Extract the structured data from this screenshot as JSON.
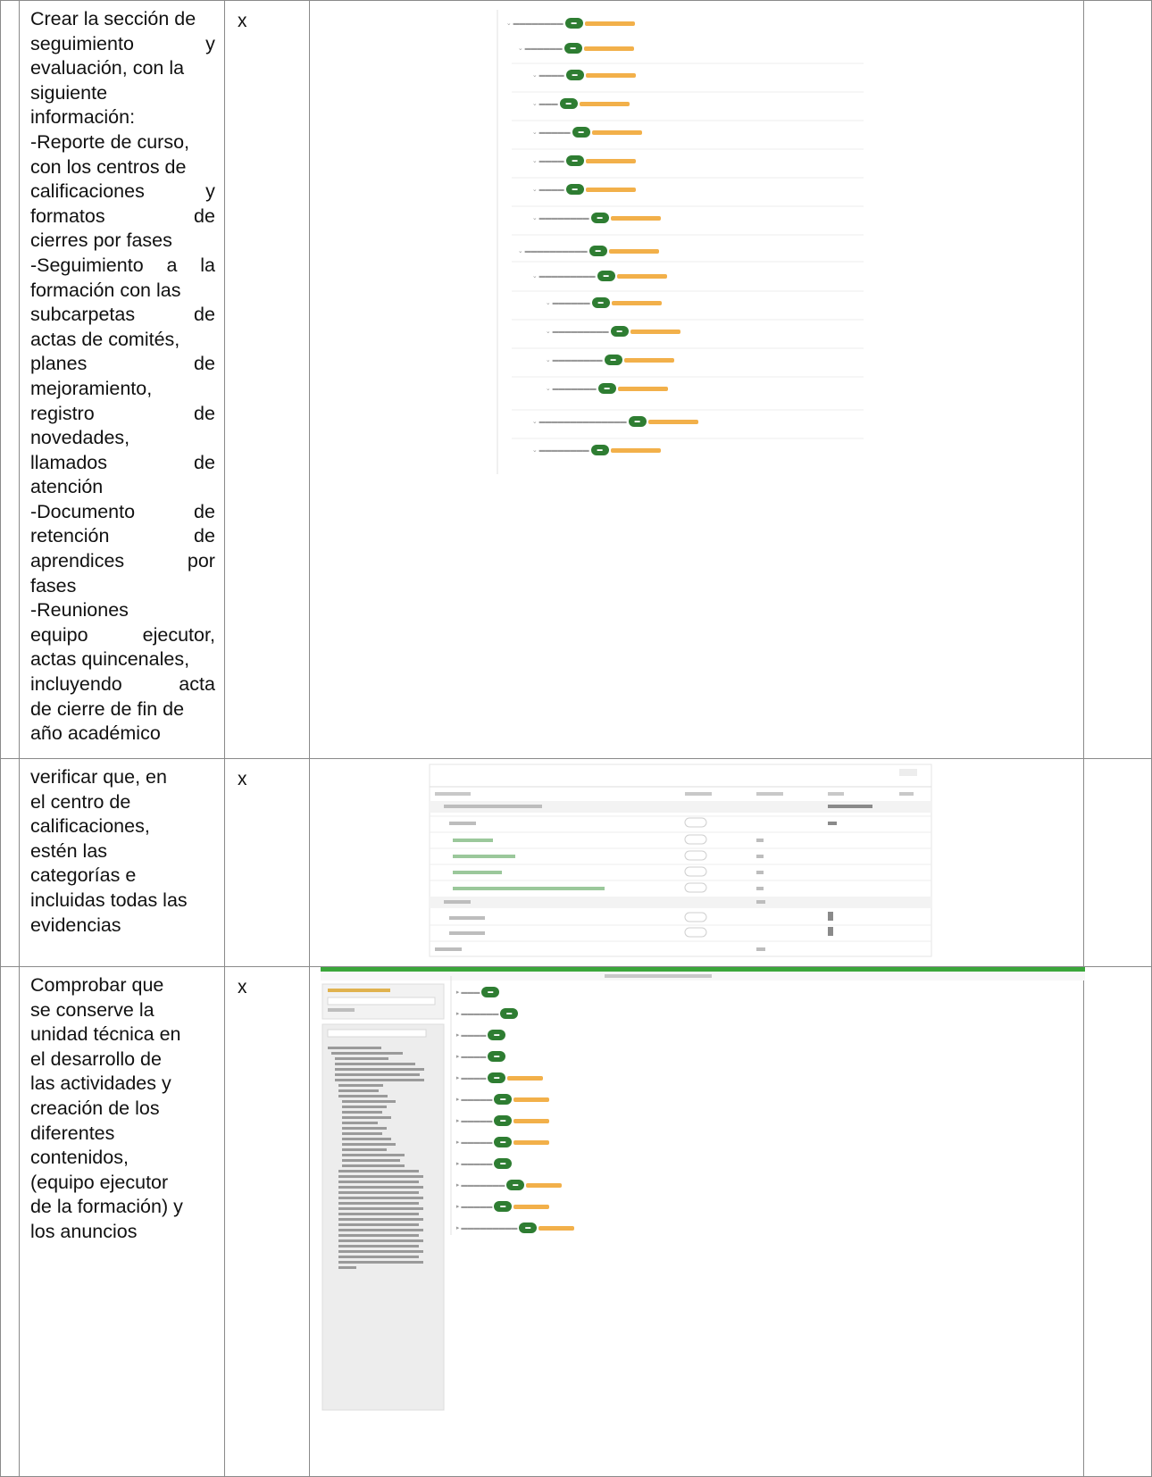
{
  "rows": [
    {
      "check_mark": "x",
      "lines": [
        "Crear la sección de",
        "seguimiento y",
        "evaluación, con la",
        "siguiente",
        "información:",
        "-Reporte de curso,",
        "con los centros de",
        "calificaciones y",
        "formatos de",
        "cierres por fases",
        "-Seguimiento a la",
        "formación con las",
        "subcarpetas de",
        "actas de comités,",
        "planes de",
        "mejoramiento,",
        "registro de",
        "novedades,",
        "llamados de",
        "atención",
        "-Documento de",
        "retención de",
        "aprendices por",
        "fases",
        "-Reuniones",
        "equipo ejecutor,",
        "actas quincenales,",
        "incluyendo acta",
        "de cierre de fin de",
        "año académico"
      ]
    },
    {
      "check_mark": "x",
      "lines": [
        "verificar que, en",
        "el centro de",
        "calificaciones,",
        "estén las",
        "categorías e",
        "incluidas todas las",
        "evidencias"
      ]
    },
    {
      "check_mark": "x",
      "lines": [
        "Comprobar que",
        "se conserve la",
        "unidad técnica en",
        "el desarrollo de",
        "las actividades y",
        "creación de los",
        "diferentes",
        "contenidos,",
        "(equipo ejecutor",
        "de la formación) y",
        "los anuncios"
      ]
    }
  ]
}
